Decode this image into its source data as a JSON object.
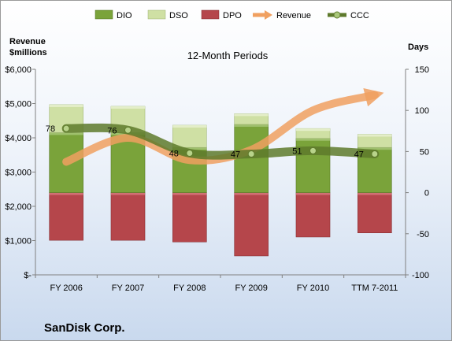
{
  "chart_data": {
    "type": "bar",
    "title": "12-Month Periods",
    "company": "SanDisk Corp.",
    "left_axis_label": [
      "Revenue",
      "$millions"
    ],
    "right_axis_label": "Days",
    "categories": [
      "FY 2006",
      "FY 2007",
      "FY 2008",
      "FY 2009",
      "FY 2010",
      "TTM 7-2011"
    ],
    "left_ylim": [
      0,
      6000
    ],
    "left_ticks": [
      "$-",
      "$1,000",
      "$2,000",
      "$3,000",
      "$4,000",
      "$5,000",
      "$6,000"
    ],
    "right_ylim": [
      -100,
      150
    ],
    "right_ticks": [
      "-100",
      "-50",
      "0",
      "50",
      "100",
      "150"
    ],
    "legend": [
      "DIO",
      "DSO",
      "DPO",
      "Revenue",
      "CCC"
    ],
    "legend_position": "top",
    "grid": false,
    "series": [
      {
        "name": "DIO",
        "axis": "right",
        "values": [
          73,
          73,
          55,
          83,
          66,
          55
        ],
        "color": "#7aa33a"
      },
      {
        "name": "DSO",
        "axis": "right",
        "values": [
          34,
          32,
          27,
          13,
          12,
          16
        ],
        "color": "#cfe0a4"
      },
      {
        "name": "DPO",
        "axis": "right",
        "values": [
          -58,
          -58,
          -60,
          -77,
          -54,
          -49
        ],
        "color": "#b5464b"
      },
      {
        "name": "Revenue",
        "axis": "left",
        "values": [
          3300,
          4000,
          3350,
          3650,
          4800,
          5250
        ],
        "color": "#f0a060"
      },
      {
        "name": "CCC",
        "axis": "right",
        "values": [
          78,
          76,
          48,
          47,
          51,
          47
        ],
        "labels": [
          "78",
          "76",
          "48",
          "47",
          "51",
          "47"
        ],
        "color": "#5e7a2c"
      }
    ]
  }
}
